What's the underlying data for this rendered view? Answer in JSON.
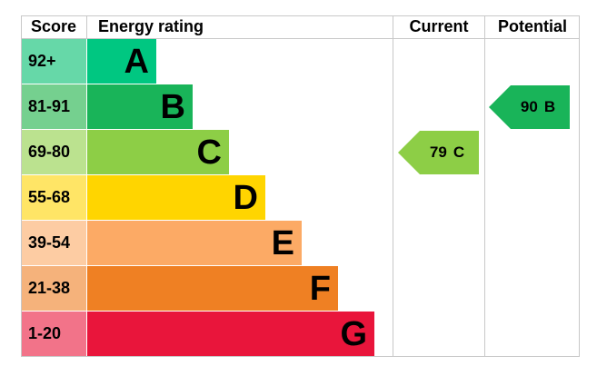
{
  "header": {
    "score": "Score",
    "rating": "Energy rating",
    "current": "Current",
    "potential": "Potential"
  },
  "bands": [
    {
      "score": "92+",
      "letter": "A",
      "color": "#00c781",
      "light": "#66d8a8"
    },
    {
      "score": "81-91",
      "letter": "B",
      "color": "#19b459",
      "light": "#75d08f"
    },
    {
      "score": "69-80",
      "letter": "C",
      "color": "#8dce46",
      "light": "#bbe28f"
    },
    {
      "score": "55-68",
      "letter": "D",
      "color": "#ffd500",
      "light": "#ffe566"
    },
    {
      "score": "39-54",
      "letter": "E",
      "color": "#fcaa65",
      "light": "#fdcca3"
    },
    {
      "score": "21-38",
      "letter": "F",
      "color": "#ef8023",
      "light": "#f5b27b"
    },
    {
      "score": "1-20",
      "letter": "G",
      "color": "#e9153b",
      "light": "#f27389"
    }
  ],
  "current": {
    "value": 79,
    "band": "C"
  },
  "potential": {
    "value": 90,
    "band": "B"
  }
}
